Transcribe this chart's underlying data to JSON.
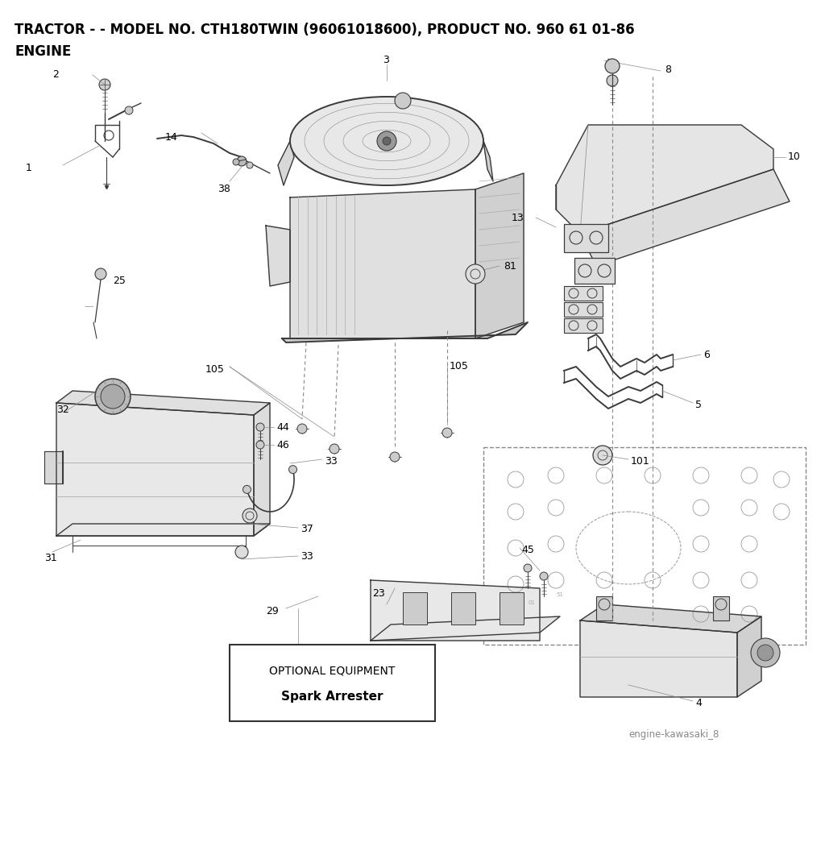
{
  "title_line1": "TRACTOR - - MODEL NO. CTH180TWIN (96061018600), PRODUCT NO. 960 61 01-86",
  "title_line2": "ENGINE",
  "bg_color": "#ffffff",
  "watermark": "engine-kawasaki_8",
  "optional_box_title": "OPTIONAL EQUIPMENT",
  "optional_box_subtitle": "Spark Arrester",
  "fig_width": 10.24,
  "fig_height": 10.66,
  "label_fontsize": 9,
  "title_fontsize": 12
}
